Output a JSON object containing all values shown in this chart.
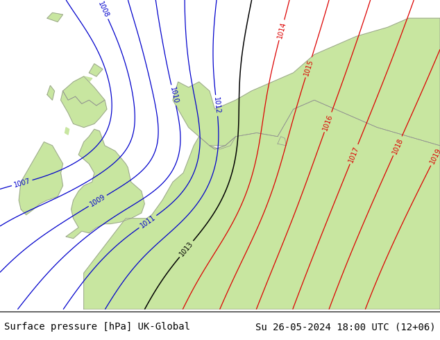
{
  "title_left": "Surface pressure [hPa] UK-Global",
  "title_right": "Su 26-05-2024 18:00 UTC (12+06)",
  "sea_color": "#d8d8d8",
  "land_color": "#c8e6a0",
  "coast_color": "#909090",
  "isobar_blue": "#0000cc",
  "isobar_black": "#000000",
  "isobar_red": "#dd0000",
  "font_size_title": 10,
  "fig_width": 6.34,
  "fig_height": 4.9,
  "dpi": 100,
  "xlim": [
    -12,
    30
  ],
  "ylim": [
    46,
    63
  ]
}
